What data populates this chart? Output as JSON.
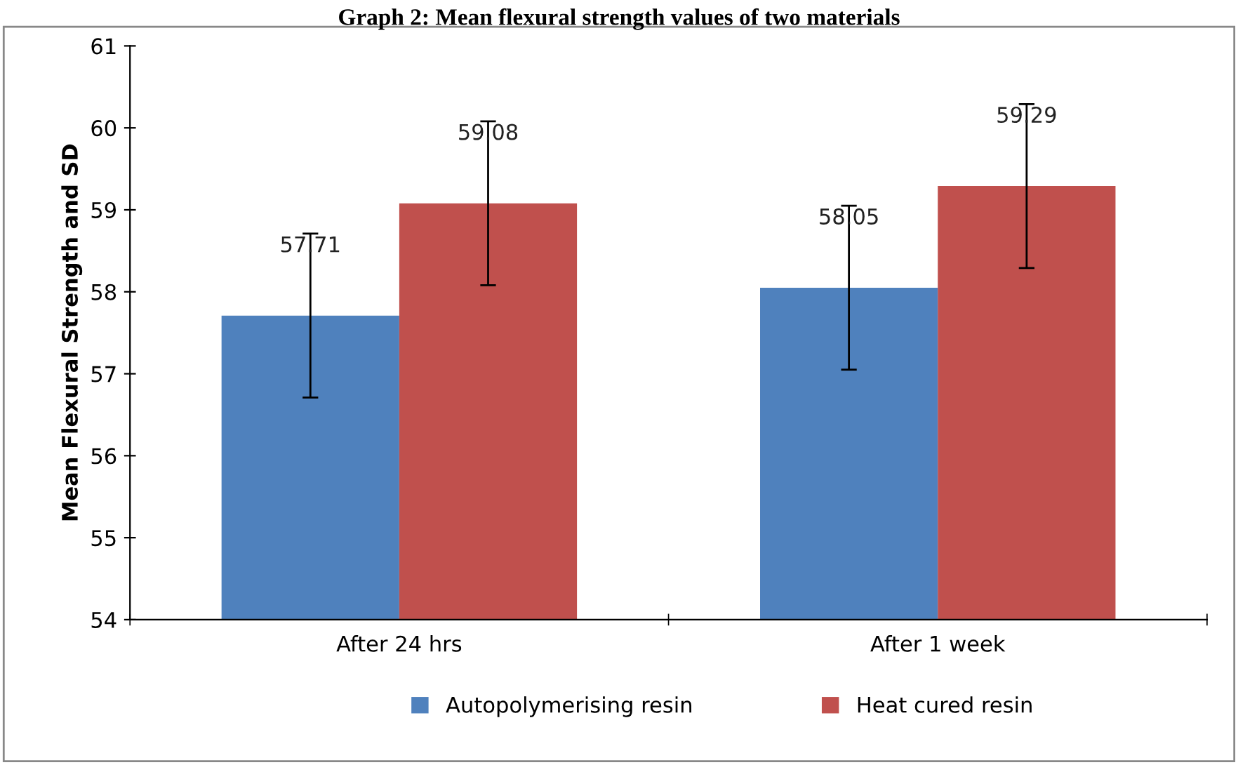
{
  "chart_data": {
    "type": "bar",
    "title": "Graph 2: Mean flexural strength values of two materials",
    "ylabel": "Mean Flexural Strength and SD",
    "categories": [
      "After 24 hrs",
      "After 1 week"
    ],
    "series": [
      {
        "name": "Autopolymerising resin",
        "color": "#4f81bd",
        "values": [
          57.71,
          58.05
        ],
        "errors": [
          1,
          1
        ]
      },
      {
        "name": "Heat cured resin",
        "color": "#c0504d",
        "values": [
          59.08,
          59.29
        ],
        "errors": [
          1,
          1
        ]
      }
    ],
    "ylim": [
      54,
      61
    ],
    "yticks": [
      54,
      55,
      56,
      57,
      58,
      59,
      60,
      61
    ],
    "grid": false,
    "legend": "bottom",
    "data_labels": true
  }
}
